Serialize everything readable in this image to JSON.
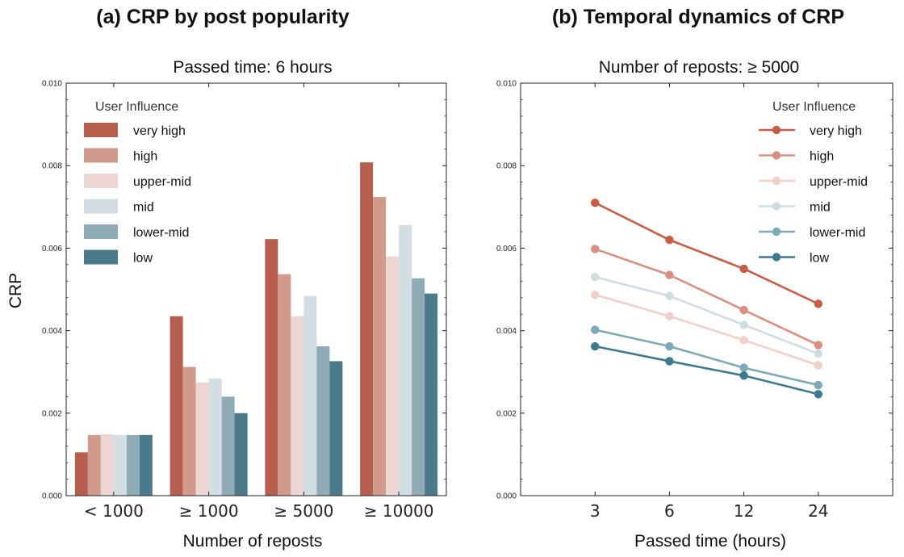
{
  "chart_data": [
    {
      "type": "bar",
      "panel_title": "(a) CRP by post popularity",
      "subtitle": "Passed time: 6 hours",
      "xlabel": "Number of reposts",
      "ylabel": "CRP",
      "categories": [
        "< 1000",
        "≥ 1000",
        "≥ 5000",
        "≥ 10000"
      ],
      "ylim": [
        0,
        0.01
      ],
      "yticks": [
        "0.000",
        "0.002",
        "0.004",
        "0.006",
        "0.008",
        "0.010"
      ],
      "legend_title": "User Influence",
      "legend_position": "top-left",
      "series": [
        {
          "name": "very high",
          "color": "#b75f4f",
          "values": [
            0.00105,
            0.00435,
            0.00622,
            0.00808
          ]
        },
        {
          "name": "high",
          "color": "#d09a8d",
          "values": [
            0.00147,
            0.00312,
            0.00537,
            0.00724
          ]
        },
        {
          "name": "upper-mid",
          "color": "#ecd5d2",
          "values": [
            0.00149,
            0.00274,
            0.00435,
            0.0058
          ]
        },
        {
          "name": "mid",
          "color": "#d2dee1",
          "values": [
            0.00147,
            0.00284,
            0.00484,
            0.00656
          ]
        },
        {
          "name": "lower-mid",
          "color": "#8eabb6",
          "values": [
            0.00147,
            0.0024,
            0.00362,
            0.00527
          ]
        },
        {
          "name": "low",
          "color": "#4b7b8b",
          "values": [
            0.00147,
            0.002,
            0.00326,
            0.0049
          ]
        }
      ]
    },
    {
      "type": "line",
      "panel_title": "(b) Temporal dynamics of CRP",
      "subtitle": "Number of reposts: ≥ 5000",
      "xlabel": "Passed time (hours)",
      "ylabel": "",
      "x": [
        "3",
        "6",
        "12",
        "24"
      ],
      "ylim": [
        0,
        0.01
      ],
      "yticks": [
        "0.000",
        "0.002",
        "0.004",
        "0.006",
        "0.008",
        "0.010"
      ],
      "legend_title": "User Influence",
      "legend_position": "top-right",
      "series": [
        {
          "name": "very high",
          "color": "#c95c45",
          "values": [
            0.0071,
            0.0062,
            0.0055,
            0.00465
          ]
        },
        {
          "name": "high",
          "color": "#d99082",
          "values": [
            0.00598,
            0.00535,
            0.0045,
            0.00365
          ]
        },
        {
          "name": "upper-mid",
          "color": "#f0d0cb",
          "values": [
            0.00487,
            0.00435,
            0.00377,
            0.00316
          ]
        },
        {
          "name": "mid",
          "color": "#cfdde3",
          "values": [
            0.0053,
            0.00484,
            0.00414,
            0.00344
          ]
        },
        {
          "name": "lower-mid",
          "color": "#7fa9b6",
          "values": [
            0.00402,
            0.00362,
            0.0031,
            0.00268
          ]
        },
        {
          "name": "low",
          "color": "#3e7990",
          "values": [
            0.00362,
            0.00326,
            0.00291,
            0.00246
          ]
        }
      ]
    }
  ]
}
